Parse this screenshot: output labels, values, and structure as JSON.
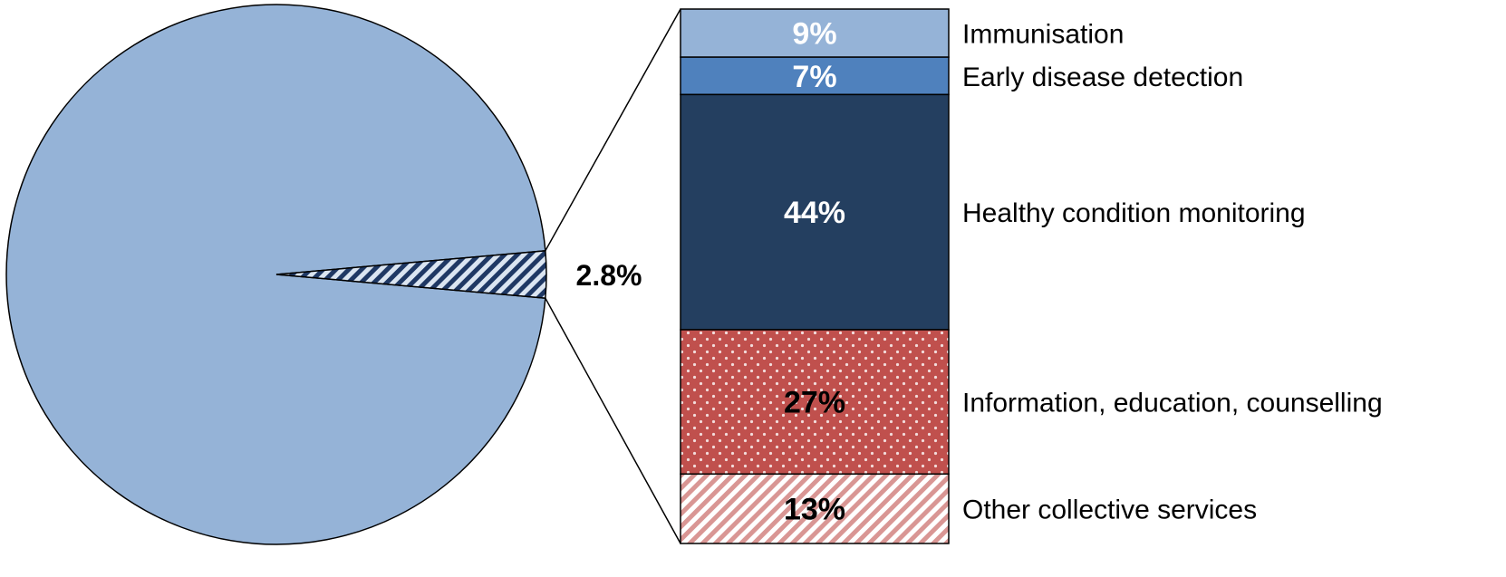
{
  "chart_data": {
    "type": "pie",
    "slices": [
      {
        "label": "",
        "value": 97.2,
        "value_label": "",
        "color": "#95b3d7",
        "pattern": "solid"
      },
      {
        "label": "",
        "value": 2.8,
        "value_label": "2.8%",
        "color": "#1f3864",
        "pattern": "diagonal-stripes"
      }
    ],
    "breakdown": {
      "type": "stacked-bar-100",
      "of_slice": "2.8%",
      "segments": [
        {
          "label": "Immunisation",
          "value": 9,
          "value_label": "9%",
          "color": "#95b3d7",
          "text_color": "#ffffff",
          "pattern": "solid"
        },
        {
          "label": "Early disease detection",
          "value": 7,
          "value_label": "7%",
          "color": "#4f81bd",
          "text_color": "#ffffff",
          "pattern": "solid"
        },
        {
          "label": "Healthy condition monitoring",
          "value": 44,
          "value_label": "44%",
          "color": "#243f60",
          "text_color": "#ffffff",
          "pattern": "solid"
        },
        {
          "label": "Information,  education, counselling",
          "value": 27,
          "value_label": "27%",
          "color": "#c0504d",
          "text_color": "#000000",
          "pattern": "dots"
        },
        {
          "label": "Other collective services",
          "value": 13,
          "value_label": "13%",
          "color": "#d99694",
          "text_color": "#000000",
          "pattern": "diagonal-stripes"
        }
      ]
    }
  }
}
